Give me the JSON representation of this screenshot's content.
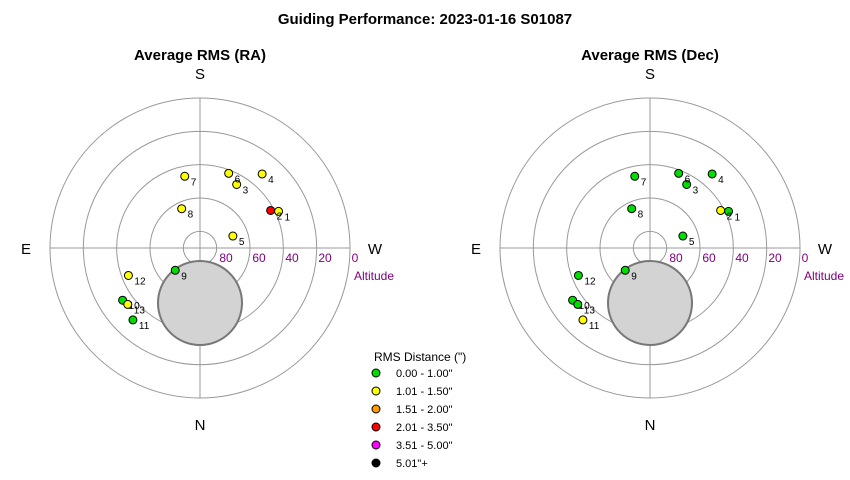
{
  "title": "Guiding Performance: 2023-01-16 S01087",
  "chart_data": [
    {
      "type": "scatter",
      "subtitle": "Average RMS (RA)",
      "directions": {
        "top": "S",
        "bottom": "N",
        "left": "E",
        "right": "W"
      },
      "altitude_ticks": [
        "80",
        "60",
        "40",
        "20",
        "0"
      ],
      "altitude_label": "Altitude",
      "points": [
        {
          "label": "1",
          "az": 245,
          "alt": 38,
          "color": "#ffff00"
        },
        {
          "label": "2",
          "az": 242,
          "alt": 42,
          "color": "#ff0000"
        },
        {
          "label": "3",
          "az": 210,
          "alt": 46,
          "color": "#ffff00"
        },
        {
          "label": "4",
          "az": 220,
          "alt": 32,
          "color": "#ffff00"
        },
        {
          "label": "5",
          "az": 250,
          "alt": 69,
          "color": "#ffff00"
        },
        {
          "label": "6",
          "az": 201,
          "alt": 42,
          "color": "#ffff00"
        },
        {
          "label": "7",
          "az": 168,
          "alt": 46,
          "color": "#ffff00"
        },
        {
          "label": "8",
          "az": 155,
          "alt": 64,
          "color": "#ffff00"
        },
        {
          "label": "9",
          "az": 48,
          "alt": 70,
          "color": "#00dd00"
        },
        {
          "label": "10",
          "az": 56,
          "alt": 34,
          "color": "#00dd00"
        },
        {
          "label": "11",
          "az": 43,
          "alt": 31,
          "color": "#00dd00"
        },
        {
          "label": "12",
          "az": 69,
          "alt": 44,
          "color": "#ffff00"
        },
        {
          "label": "13",
          "az": 52,
          "alt": 35,
          "color": "#ffff00"
        }
      ]
    },
    {
      "type": "scatter",
      "subtitle": "Average RMS (Dec)",
      "directions": {
        "top": "S",
        "bottom": "N",
        "left": "E",
        "right": "W"
      },
      "altitude_ticks": [
        "80",
        "60",
        "40",
        "20",
        "0"
      ],
      "altitude_label": "Altitude",
      "points": [
        {
          "label": "1",
          "az": 245,
          "alt": 38,
          "color": "#00dd00"
        },
        {
          "label": "2",
          "az": 242,
          "alt": 42,
          "color": "#ffff00"
        },
        {
          "label": "3",
          "az": 210,
          "alt": 46,
          "color": "#00dd00"
        },
        {
          "label": "4",
          "az": 220,
          "alt": 32,
          "color": "#00dd00"
        },
        {
          "label": "5",
          "az": 250,
          "alt": 69,
          "color": "#00dd00"
        },
        {
          "label": "6",
          "az": 201,
          "alt": 42,
          "color": "#00dd00"
        },
        {
          "label": "7",
          "az": 168,
          "alt": 46,
          "color": "#00dd00"
        },
        {
          "label": "8",
          "az": 155,
          "alt": 64,
          "color": "#00dd00"
        },
        {
          "label": "9",
          "az": 48,
          "alt": 70,
          "color": "#00dd00"
        },
        {
          "label": "10",
          "az": 56,
          "alt": 34,
          "color": "#00dd00"
        },
        {
          "label": "11",
          "az": 43,
          "alt": 31,
          "color": "#ffff00"
        },
        {
          "label": "12",
          "az": 69,
          "alt": 44,
          "color": "#00dd00"
        },
        {
          "label": "13",
          "az": 52,
          "alt": 35,
          "color": "#00dd00"
        }
      ]
    }
  ],
  "legend": {
    "title": "RMS Distance (\")",
    "items": [
      {
        "label": "0.00 - 1.00\"",
        "color": "#00dd00"
      },
      {
        "label": "1.01 - 1.50\"",
        "color": "#ffff00"
      },
      {
        "label": "1.51 - 2.00\"",
        "color": "#ff9900"
      },
      {
        "label": "2.01 - 3.50\"",
        "color": "#ff0000"
      },
      {
        "label": "3.51 - 5.00\"",
        "color": "#ff00ff"
      },
      {
        "label": "5.01\"+",
        "color": "#000000"
      }
    ]
  }
}
